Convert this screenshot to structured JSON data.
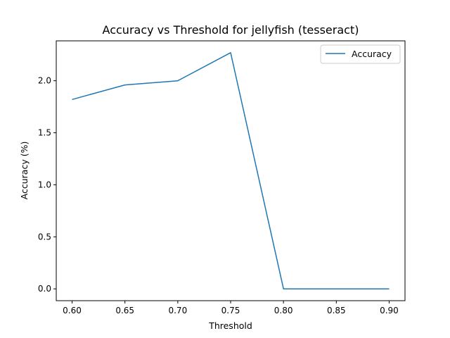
{
  "chart_data": {
    "type": "line",
    "title": "Accuracy vs Threshold for jellyfish (tesseract)",
    "xlabel": "Threshold",
    "ylabel": "Accuracy (%)",
    "x": [
      0.6,
      0.65,
      0.7,
      0.75,
      0.8,
      0.85,
      0.9
    ],
    "series": [
      {
        "name": "Accuracy",
        "values": [
          1.82,
          1.96,
          2.0,
          2.27,
          0.0,
          0.0,
          0.0
        ],
        "color": "#1f77b4"
      }
    ],
    "xlim": [
      0.585,
      0.915
    ],
    "ylim": [
      -0.1135,
      2.3835
    ],
    "xticks": [
      "0.60",
      "0.65",
      "0.70",
      "0.75",
      "0.80",
      "0.85",
      "0.90"
    ],
    "yticks": [
      "0.0",
      "0.5",
      "1.0",
      "1.5",
      "2.0"
    ],
    "grid": false,
    "legend_position": "top-right"
  }
}
